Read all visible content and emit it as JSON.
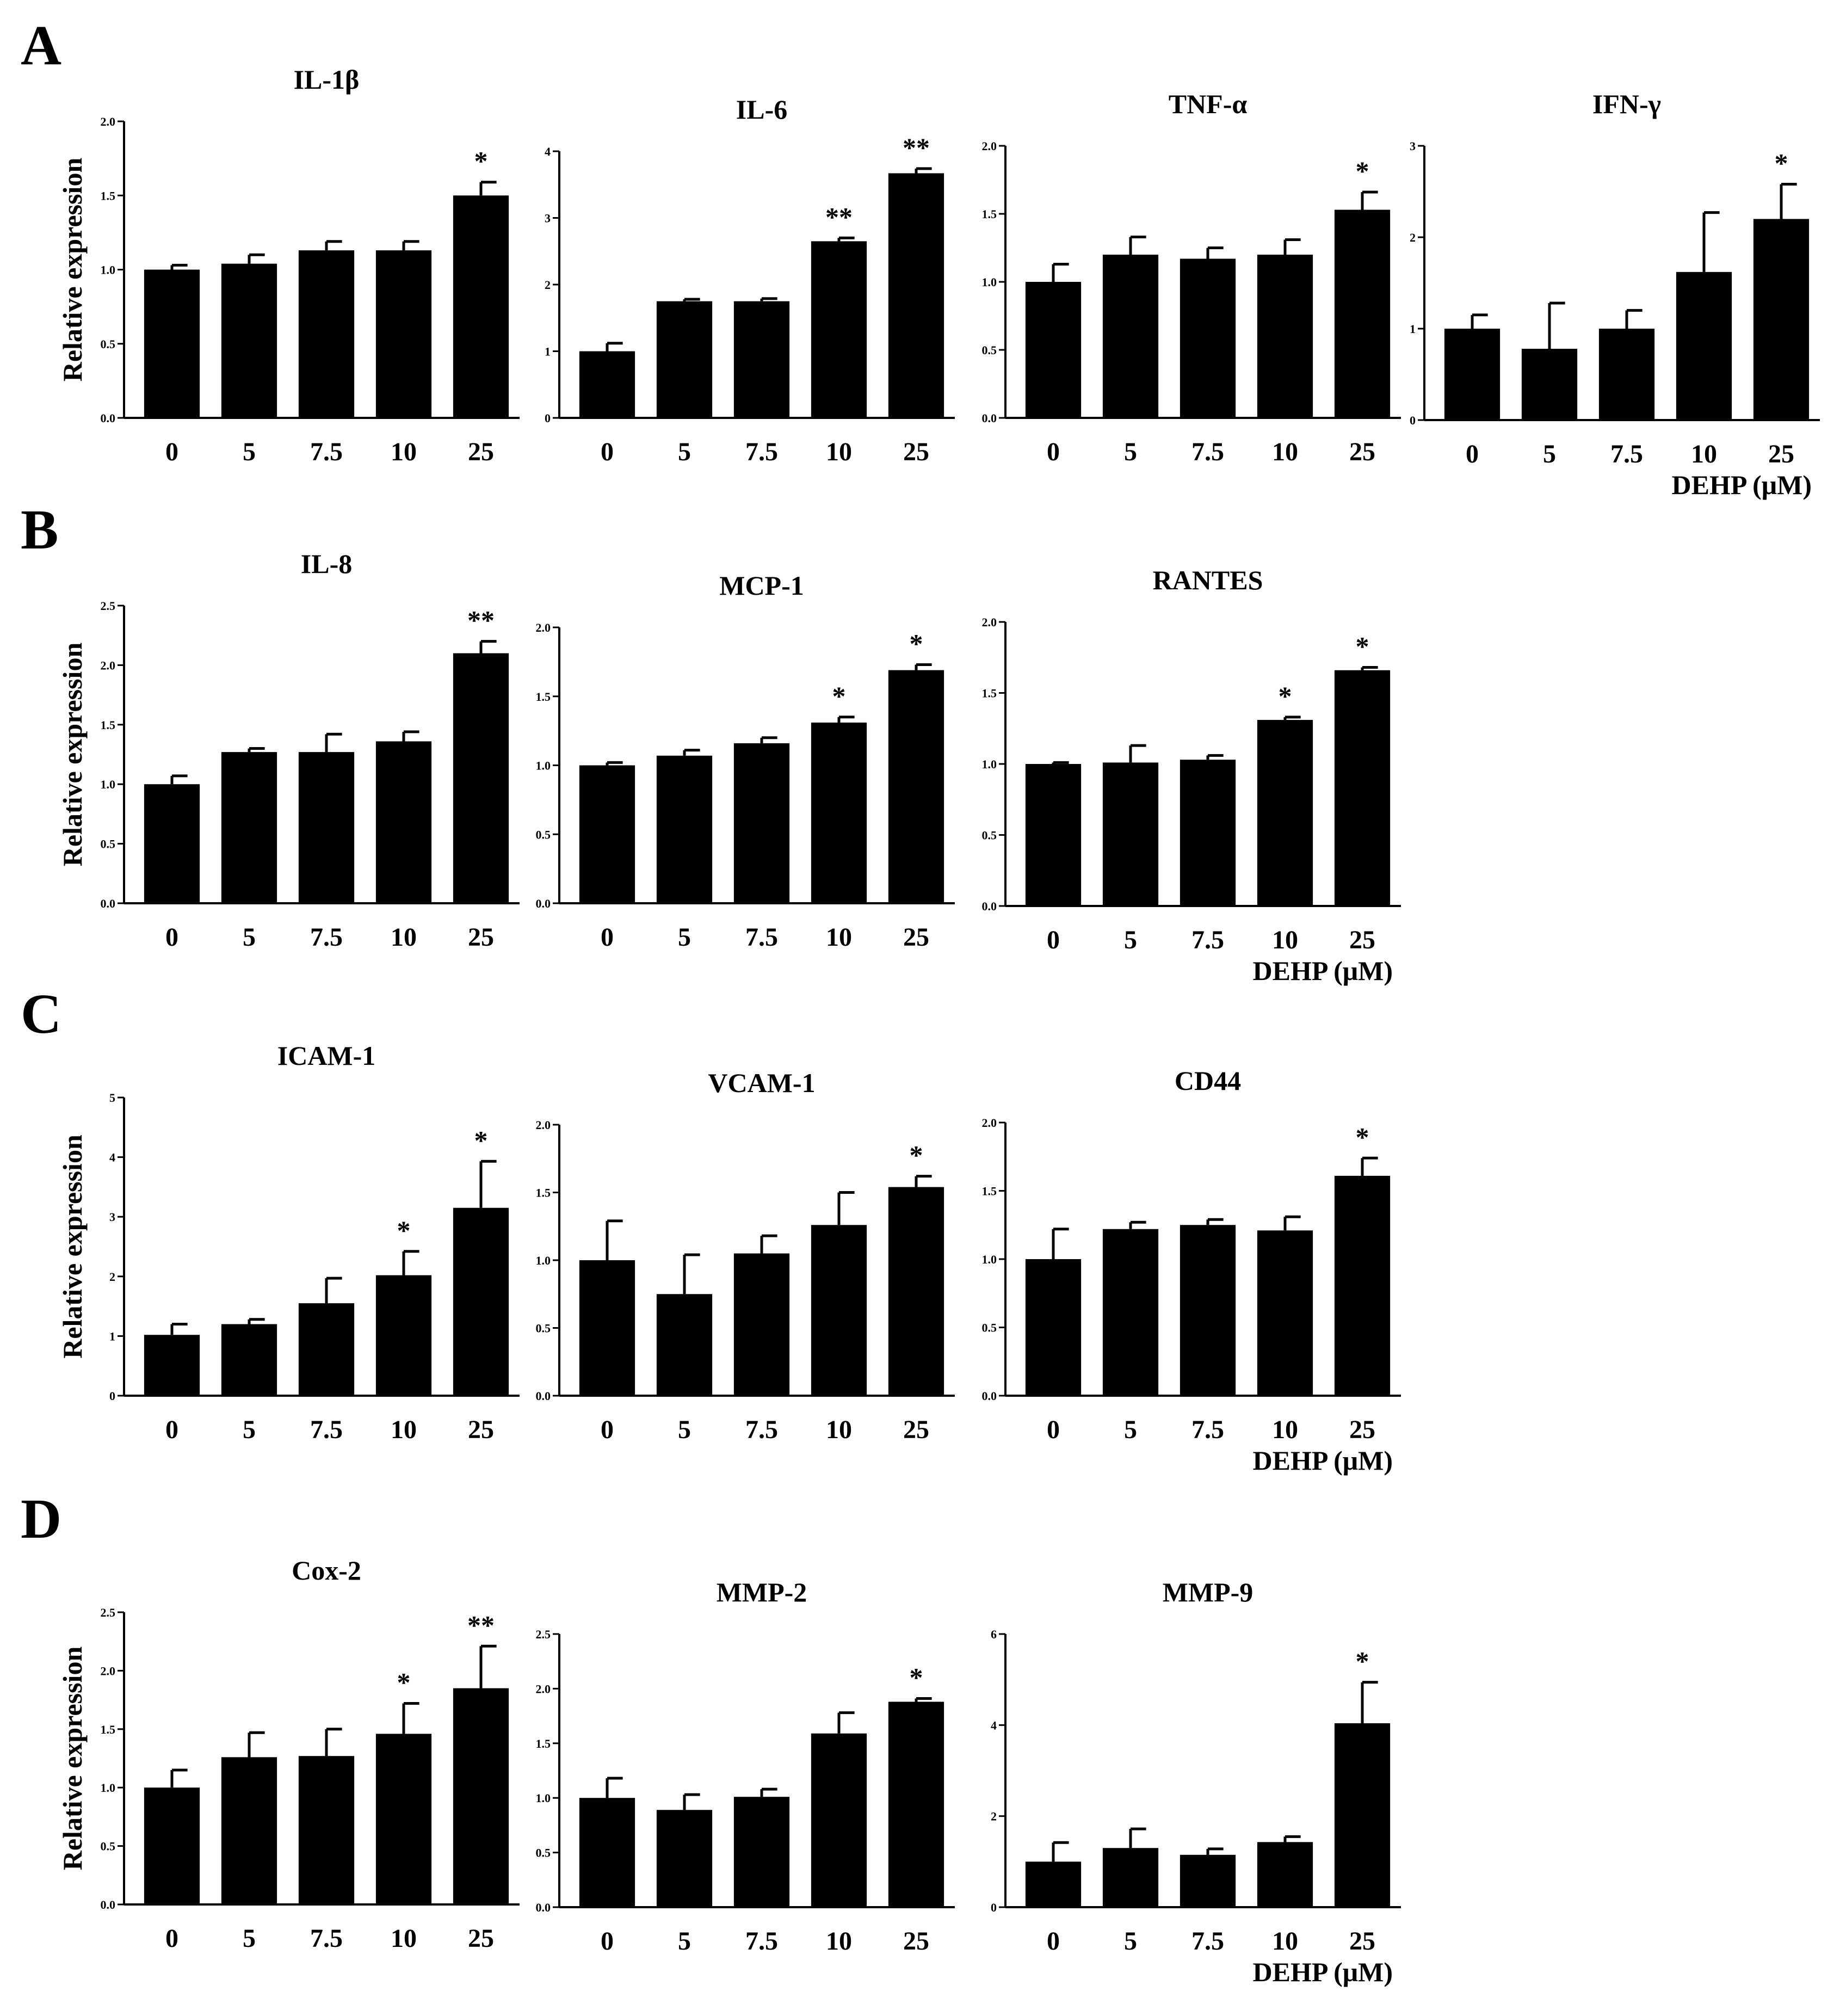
{
  "figure": {
    "colors": {
      "bar": "#000000",
      "axis": "#000000",
      "background": "#ffffff"
    },
    "panel_labels": [
      "A",
      "B",
      "C",
      "D"
    ]
  },
  "chart_data": [
    {
      "id": "il1b",
      "panel": "A",
      "type": "bar",
      "title": "IL-1β",
      "categories": [
        "0",
        "5",
        "7.5",
        "10",
        "25"
      ],
      "values": [
        1.0,
        1.04,
        1.13,
        1.13,
        1.5
      ],
      "errors": [
        0.03,
        0.06,
        0.06,
        0.06,
        0.09
      ],
      "significance": [
        "",
        "",
        "",
        "",
        "*"
      ],
      "ylim": [
        0,
        2
      ],
      "yticks": [
        "0.0",
        "0.5",
        "1.0",
        "1.5",
        "2.0"
      ],
      "ylabel": "Relative expression",
      "xlabel": ""
    },
    {
      "id": "il6",
      "panel": "A",
      "type": "bar",
      "title": "IL-6",
      "categories": [
        "0",
        "5",
        "7.5",
        "10",
        "25"
      ],
      "values": [
        1.0,
        1.75,
        1.75,
        2.65,
        3.67
      ],
      "errors": [
        0.12,
        0.03,
        0.04,
        0.05,
        0.07
      ],
      "significance": [
        "",
        "",
        "",
        "**",
        "**"
      ],
      "ylim": [
        0,
        4
      ],
      "yticks": [
        "0",
        "1",
        "2",
        "3",
        "4"
      ],
      "ylabel": "",
      "xlabel": ""
    },
    {
      "id": "tnfa",
      "panel": "A",
      "type": "bar",
      "title": "TNF-α",
      "categories": [
        "0",
        "5",
        "7.5",
        "10",
        "25"
      ],
      "values": [
        1.0,
        1.2,
        1.17,
        1.2,
        1.53
      ],
      "errors": [
        0.13,
        0.13,
        0.08,
        0.11,
        0.13
      ],
      "significance": [
        "",
        "",
        "",
        "",
        "*"
      ],
      "ylim": [
        0,
        2
      ],
      "yticks": [
        "0.0",
        "0.5",
        "1.0",
        "1.5",
        "2.0"
      ],
      "ylabel": "",
      "xlabel": ""
    },
    {
      "id": "ifng",
      "panel": "A",
      "type": "bar",
      "title": "IFN-γ",
      "categories": [
        "0",
        "5",
        "7.5",
        "10",
        "25"
      ],
      "values": [
        1.0,
        0.78,
        1.0,
        1.62,
        2.2
      ],
      "errors": [
        0.15,
        0.5,
        0.2,
        0.65,
        0.38
      ],
      "significance": [
        "",
        "",
        "",
        "",
        "*"
      ],
      "ylim": [
        0,
        3
      ],
      "yticks": [
        "0",
        "1",
        "2",
        "3"
      ],
      "ylabel": "",
      "xlabel": "DEHP (μM)"
    },
    {
      "id": "il8",
      "panel": "B",
      "type": "bar",
      "title": "IL-8",
      "categories": [
        "0",
        "5",
        "7.5",
        "10",
        "25"
      ],
      "values": [
        1.0,
        1.27,
        1.27,
        1.36,
        2.1
      ],
      "errors": [
        0.07,
        0.03,
        0.15,
        0.08,
        0.1
      ],
      "significance": [
        "",
        "",
        "",
        "",
        "**"
      ],
      "ylim": [
        0,
        2.5
      ],
      "yticks": [
        "0.0",
        "0.5",
        "1.0",
        "1.5",
        "2.0",
        "2.5"
      ],
      "ylabel": "Relative expression",
      "xlabel": ""
    },
    {
      "id": "mcp1",
      "panel": "B",
      "type": "bar",
      "title": "MCP-1",
      "categories": [
        "0",
        "5",
        "7.5",
        "10",
        "25"
      ],
      "values": [
        1.0,
        1.07,
        1.16,
        1.31,
        1.69
      ],
      "errors": [
        0.02,
        0.04,
        0.04,
        0.04,
        0.04
      ],
      "significance": [
        "",
        "",
        "",
        "*",
        "*"
      ],
      "ylim": [
        0,
        2
      ],
      "yticks": [
        "0.0",
        "0.5",
        "1.0",
        "1.5",
        "2.0"
      ],
      "ylabel": "",
      "xlabel": ""
    },
    {
      "id": "rantes",
      "panel": "B",
      "type": "bar",
      "title": "RANTES",
      "categories": [
        "0",
        "5",
        "7.5",
        "10",
        "25"
      ],
      "values": [
        1.0,
        1.01,
        1.03,
        1.31,
        1.66
      ],
      "errors": [
        0.01,
        0.12,
        0.03,
        0.02,
        0.02
      ],
      "significance": [
        "",
        "",
        "",
        "*",
        "*"
      ],
      "ylim": [
        0,
        2
      ],
      "yticks": [
        "0.0",
        "0.5",
        "1.0",
        "1.5",
        "2.0"
      ],
      "ylabel": "",
      "xlabel": "DEHP (μM)"
    },
    {
      "id": "icam1",
      "panel": "C",
      "type": "bar",
      "title": "ICAM-1",
      "categories": [
        "0",
        "5",
        "7.5",
        "10",
        "25"
      ],
      "values": [
        1.02,
        1.2,
        1.55,
        2.02,
        3.15
      ],
      "errors": [
        0.18,
        0.08,
        0.42,
        0.4,
        0.78
      ],
      "significance": [
        "",
        "",
        "",
        "*",
        "*"
      ],
      "ylim": [
        0,
        5
      ],
      "yticks": [
        "0",
        "1",
        "2",
        "3",
        "4",
        "5"
      ],
      "ylabel": "Relative expression",
      "xlabel": ""
    },
    {
      "id": "vcam1",
      "panel": "C",
      "type": "bar",
      "title": "VCAM-1",
      "categories": [
        "0",
        "5",
        "7.5",
        "10",
        "25"
      ],
      "values": [
        1.0,
        0.75,
        1.05,
        1.26,
        1.54
      ],
      "errors": [
        0.29,
        0.29,
        0.13,
        0.24,
        0.08
      ],
      "significance": [
        "",
        "",
        "",
        "",
        "*"
      ],
      "ylim": [
        0,
        2
      ],
      "yticks": [
        "0.0",
        "0.5",
        "1.0",
        "1.5",
        "2.0"
      ],
      "ylabel": "",
      "xlabel": ""
    },
    {
      "id": "cd44",
      "panel": "C",
      "type": "bar",
      "title": "CD44",
      "categories": [
        "0",
        "5",
        "7.5",
        "10",
        "25"
      ],
      "values": [
        1.0,
        1.22,
        1.25,
        1.21,
        1.61
      ],
      "errors": [
        0.22,
        0.05,
        0.04,
        0.1,
        0.13
      ],
      "significance": [
        "",
        "",
        "",
        "",
        "*"
      ],
      "ylim": [
        0,
        2
      ],
      "yticks": [
        "0.0",
        "0.5",
        "1.0",
        "1.5",
        "2.0"
      ],
      "ylabel": "",
      "xlabel": "DEHP (μM)"
    },
    {
      "id": "cox2",
      "panel": "D",
      "type": "bar",
      "title": "Cox-2",
      "categories": [
        "0",
        "5",
        "7.5",
        "10",
        "25"
      ],
      "values": [
        1.0,
        1.26,
        1.27,
        1.46,
        1.85
      ],
      "errors": [
        0.15,
        0.21,
        0.23,
        0.26,
        0.36
      ],
      "significance": [
        "",
        "",
        "",
        "*",
        "**"
      ],
      "ylim": [
        0,
        2.5
      ],
      "yticks": [
        "0.0",
        "0.5",
        "1.0",
        "1.5",
        "2.0",
        "2.5"
      ],
      "ylabel": "Relative expression",
      "xlabel": ""
    },
    {
      "id": "mmp2",
      "panel": "D",
      "type": "bar",
      "title": "MMP-2",
      "categories": [
        "0",
        "5",
        "7.5",
        "10",
        "25"
      ],
      "values": [
        1.0,
        0.89,
        1.01,
        1.59,
        1.88
      ],
      "errors": [
        0.18,
        0.14,
        0.07,
        0.19,
        0.03
      ],
      "significance": [
        "",
        "",
        "",
        "",
        "*"
      ],
      "ylim": [
        0,
        2.5
      ],
      "yticks": [
        "0.0",
        "0.5",
        "1.0",
        "1.5",
        "2.0",
        "2.5"
      ],
      "ylabel": "",
      "xlabel": ""
    },
    {
      "id": "mmp9",
      "panel": "D",
      "type": "bar",
      "title": "MMP-9",
      "categories": [
        "0",
        "5",
        "7.5",
        "10",
        "25"
      ],
      "values": [
        1.0,
        1.3,
        1.15,
        1.43,
        4.04
      ],
      "errors": [
        0.42,
        0.42,
        0.13,
        0.12,
        0.9
      ],
      "significance": [
        "",
        "",
        "",
        "",
        "*"
      ],
      "ylim": [
        0,
        6
      ],
      "yticks": [
        "0",
        "2",
        "4",
        "6"
      ],
      "ylabel": "",
      "xlabel": "DEHP (μM)"
    }
  ]
}
